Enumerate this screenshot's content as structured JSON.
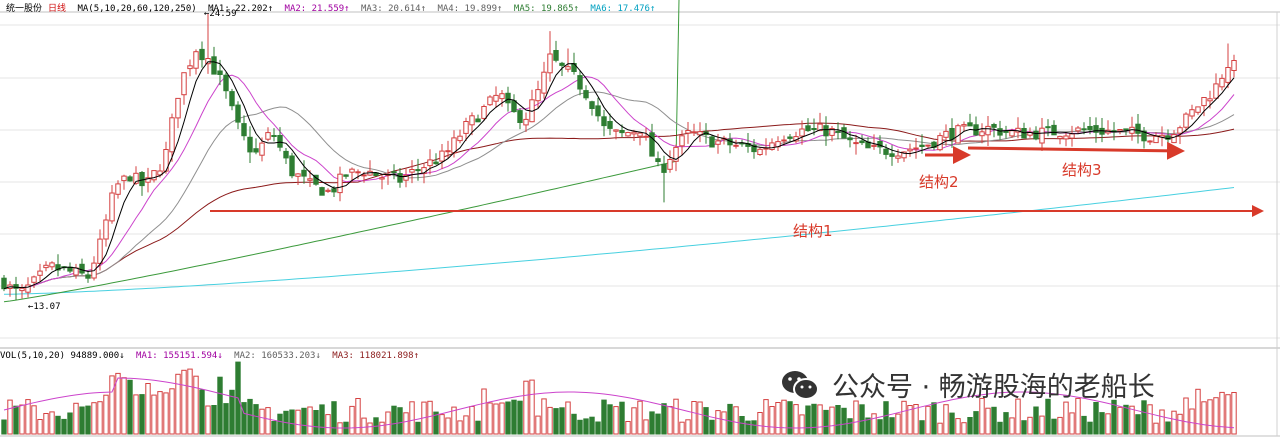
{
  "header": {
    "title": "统一股份",
    "period": "日线",
    "ma_label": "MA(5,10,20,60,120,250)",
    "ma1": "MA1: 22.202↑",
    "ma2": "MA2: 21.559↑",
    "ma3": "MA3: 20.614↑",
    "ma4": "MA4: 19.899↑",
    "ma5": "MA5: 19.865↑",
    "ma6": "MA6: 17.476↑"
  },
  "volume_header": {
    "vol_label": "VOL(5,10,20) 94889.000↓",
    "ma1": "MA1: 155151.594↓",
    "ma2": "MA2: 160533.203↓",
    "ma3": "MA3: 118021.898↑"
  },
  "watermark": {
    "icon": "wechat-icon",
    "text": "公众号 · 畅游股海的老船长"
  },
  "chart_data": {
    "type": "candlestick",
    "price_low_label": "13.07",
    "price_high_label": "24.59",
    "annotations": [
      "结构1",
      "结构2",
      "结构3"
    ],
    "colors": {
      "up": "#d44040",
      "down": "#2e7d32",
      "ma1": "#000000",
      "ma2": "#cc44cc",
      "ma3": "#a87030",
      "ma4": "#8f8f8f",
      "ma5": "#3c9a3c",
      "ma6": "#48d0e0",
      "arrow": "#d83a2a"
    }
  }
}
